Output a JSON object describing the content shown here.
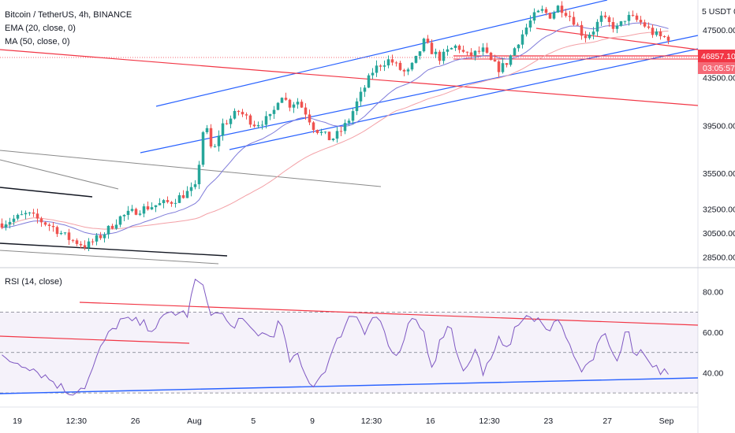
{
  "chart_data": {
    "type": "candlestick",
    "title": "Bitcoin / TetherUS, 4h, BINANCE",
    "indicators": [
      "EMA (20, close, 0)",
      "MA (50, close, 0)"
    ],
    "currency_label": "5 USDT 0",
    "price_axis": {
      "ticks": [
        "47500.00",
        "43500.00",
        "39500.00",
        "35500.00",
        "32500.00",
        "30500.00",
        "28500.00"
      ],
      "range": [
        27600,
        50000
      ]
    },
    "last_price": "46857.10",
    "countdown": "03:05:57",
    "time_axis": {
      "ticks": [
        "19",
        "12:30",
        "26",
        "Aug",
        "5",
        "9",
        "12:30",
        "16",
        "12:30",
        "23",
        "27",
        "Sep"
      ]
    },
    "price_path": [
      [
        0,
        31300
      ],
      [
        3,
        32100
      ],
      [
        6,
        31000
      ],
      [
        8,
        30000
      ],
      [
        10,
        29400
      ],
      [
        12,
        30400
      ],
      [
        14,
        31800
      ],
      [
        16,
        32400
      ],
      [
        18,
        32800
      ],
      [
        20,
        33100
      ],
      [
        22,
        33900
      ],
      [
        23,
        34300
      ],
      [
        24,
        39900
      ],
      [
        25,
        37000
      ],
      [
        26,
        39500
      ],
      [
        27,
        40000
      ],
      [
        28,
        40700
      ],
      [
        30,
        39600
      ],
      [
        32,
        40200
      ],
      [
        33,
        42300
      ],
      [
        34,
        41200
      ],
      [
        35,
        41600
      ],
      [
        36,
        40600
      ],
      [
        37,
        39300
      ],
      [
        38,
        38800
      ],
      [
        39,
        38300
      ],
      [
        40,
        38900
      ],
      [
        41,
        39800
      ],
      [
        42,
        41300
      ],
      [
        43,
        42700
      ],
      [
        44,
        44100
      ],
      [
        45,
        44700
      ],
      [
        46,
        45000
      ],
      [
        47,
        44300
      ],
      [
        48,
        43800
      ],
      [
        49,
        44900
      ],
      [
        50,
        46500
      ],
      [
        51,
        45700
      ],
      [
        52,
        45100
      ],
      [
        53,
        45800
      ],
      [
        54,
        46200
      ],
      [
        55,
        45300
      ],
      [
        56,
        45500
      ],
      [
        57,
        45800
      ],
      [
        58,
        44800
      ],
      [
        59,
        44200
      ],
      [
        60,
        44900
      ],
      [
        61,
        46300
      ],
      [
        62,
        47500
      ],
      [
        63,
        48600
      ],
      [
        64,
        49100
      ],
      [
        65,
        48700
      ],
      [
        66,
        49500
      ],
      [
        67,
        48900
      ],
      [
        68,
        48100
      ],
      [
        69,
        46900
      ],
      [
        70,
        47400
      ],
      [
        71,
        48500
      ],
      [
        72,
        48000
      ],
      [
        73,
        47600
      ],
      [
        74,
        48600
      ],
      [
        75,
        48400
      ],
      [
        76,
        48000
      ],
      [
        77,
        47300
      ],
      [
        78,
        46900
      ],
      [
        79,
        46857
      ]
    ],
    "rsi": {
      "label": "RSI (14, close)",
      "ticks": [
        "80.00",
        "60.00",
        "40.00"
      ],
      "range": [
        25,
        90
      ],
      "bands": [
        70,
        50,
        30
      ],
      "path": [
        [
          0,
          47
        ],
        [
          3,
          44
        ],
        [
          6,
          36
        ],
        [
          8,
          30
        ],
        [
          10,
          34
        ],
        [
          12,
          55
        ],
        [
          14,
          66
        ],
        [
          16,
          65
        ],
        [
          18,
          62
        ],
        [
          20,
          70
        ],
        [
          22,
          69
        ],
        [
          23,
          87
        ],
        [
          24,
          80
        ],
        [
          25,
          68
        ],
        [
          26,
          70
        ],
        [
          27,
          62
        ],
        [
          28,
          66
        ],
        [
          30,
          60
        ],
        [
          32,
          58
        ],
        [
          33,
          66
        ],
        [
          34,
          46
        ],
        [
          35,
          48
        ],
        [
          36,
          38
        ],
        [
          37,
          34
        ],
        [
          38,
          40
        ],
        [
          39,
          48
        ],
        [
          40,
          58
        ],
        [
          41,
          67
        ],
        [
          42,
          69
        ],
        [
          43,
          61
        ],
        [
          44,
          68
        ],
        [
          45,
          65
        ],
        [
          46,
          51
        ],
        [
          47,
          45
        ],
        [
          48,
          62
        ],
        [
          49,
          66
        ],
        [
          50,
          60
        ],
        [
          51,
          43
        ],
        [
          52,
          56
        ],
        [
          53,
          66
        ],
        [
          54,
          49
        ],
        [
          55,
          40
        ],
        [
          56,
          52
        ],
        [
          57,
          41
        ],
        [
          58,
          45
        ],
        [
          59,
          57
        ],
        [
          60,
          54
        ],
        [
          61,
          62
        ],
        [
          62,
          69
        ],
        [
          63,
          64
        ],
        [
          64,
          67
        ],
        [
          65,
          60
        ],
        [
          66,
          69
        ],
        [
          67,
          56
        ],
        [
          68,
          45
        ],
        [
          69,
          41
        ],
        [
          70,
          44
        ],
        [
          71,
          60
        ],
        [
          72,
          55
        ],
        [
          73,
          44
        ],
        [
          74,
          63
        ],
        [
          75,
          47
        ],
        [
          76,
          52
        ],
        [
          77,
          45
        ],
        [
          78,
          40
        ],
        [
          79,
          39
        ]
      ]
    },
    "colors": {
      "up": "#26a69a",
      "down": "#ef5350",
      "ema": "#7e7ad9",
      "ma": "#f3a0a6",
      "rsi": "#7e57c2",
      "trend_blue": "#2962ff",
      "trend_red": "#f23645"
    }
  }
}
